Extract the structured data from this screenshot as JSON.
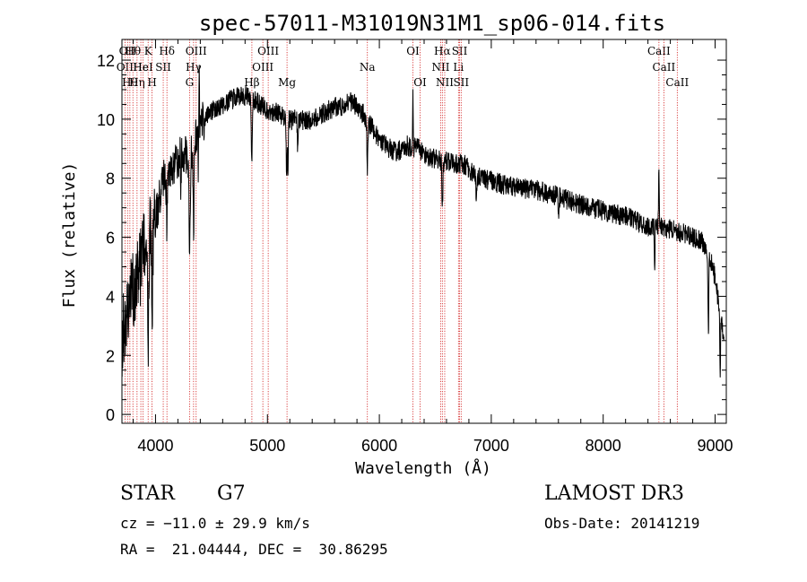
{
  "chart_data": {
    "type": "line",
    "title": "spec-57011-M31019N31M1_sp06-014.fits",
    "xlabel": "Wavelength (Å)",
    "ylabel": "Flux (relative)",
    "xlim": [
      3700,
      9100
    ],
    "ylim": [
      -0.3,
      12.7
    ],
    "x_ticks": [
      4000,
      5000,
      6000,
      7000,
      8000,
      9000
    ],
    "y_ticks": [
      0,
      2,
      4,
      6,
      8,
      10,
      12
    ],
    "grid": false,
    "continuum": [
      [
        3700,
        2.6
      ],
      [
        3740,
        3.4
      ],
      [
        3780,
        4.0
      ],
      [
        3820,
        4.4
      ],
      [
        3860,
        5.0
      ],
      [
        3900,
        5.5
      ],
      [
        3940,
        5.9
      ],
      [
        3980,
        6.3
      ],
      [
        4020,
        7.0
      ],
      [
        4060,
        7.8
      ],
      [
        4100,
        8.2
      ],
      [
        4150,
        8.4
      ],
      [
        4200,
        8.7
      ],
      [
        4250,
        8.9
      ],
      [
        4300,
        8.7
      ],
      [
        4350,
        9.2
      ],
      [
        4400,
        9.8
      ],
      [
        4450,
        10.0
      ],
      [
        4500,
        10.3
      ],
      [
        4600,
        10.5
      ],
      [
        4700,
        10.7
      ],
      [
        4800,
        10.8
      ],
      [
        4900,
        10.6
      ],
      [
        5000,
        10.3
      ],
      [
        5100,
        10.2
      ],
      [
        5200,
        10.0
      ],
      [
        5300,
        9.95
      ],
      [
        5400,
        10.0
      ],
      [
        5500,
        10.2
      ],
      [
        5600,
        10.4
      ],
      [
        5700,
        10.5
      ],
      [
        5760,
        10.6
      ],
      [
        5850,
        10.2
      ],
      [
        5950,
        9.6
      ],
      [
        6050,
        9.1
      ],
      [
        6150,
        8.9
      ],
      [
        6250,
        9.1
      ],
      [
        6350,
        9.0
      ],
      [
        6450,
        8.7
      ],
      [
        6550,
        8.6
      ],
      [
        6650,
        8.5
      ],
      [
        6750,
        8.5
      ],
      [
        6850,
        8.1
      ],
      [
        7000,
        7.9
      ],
      [
        7200,
        7.7
      ],
      [
        7400,
        7.6
      ],
      [
        7600,
        7.4
      ],
      [
        7800,
        7.1
      ],
      [
        8000,
        6.9
      ],
      [
        8200,
        6.7
      ],
      [
        8400,
        6.4
      ],
      [
        8600,
        6.3
      ],
      [
        8800,
        6.0
      ],
      [
        8900,
        5.8
      ],
      [
        8960,
        5.3
      ],
      [
        9000,
        4.6
      ],
      [
        9040,
        3.6
      ],
      [
        9080,
        2.4
      ]
    ],
    "absorption_features": [
      {
        "wavelength": 3934,
        "depth": 4.2,
        "width": 6
      },
      {
        "wavelength": 3969,
        "depth": 3.5,
        "width": 6
      },
      {
        "wavelength": 4101,
        "depth": 1.8,
        "width": 6
      },
      {
        "wavelength": 4227,
        "depth": 1.0,
        "width": 5
      },
      {
        "wavelength": 4305,
        "depth": 3.0,
        "width": 7
      },
      {
        "wavelength": 4340,
        "depth": 2.6,
        "width": 6
      },
      {
        "wavelength": 4383,
        "depth": 1.2,
        "width": 5
      },
      {
        "wavelength": 4861,
        "depth": 2.3,
        "width": 6
      },
      {
        "wavelength": 5172,
        "depth": 1.8,
        "width": 6
      },
      {
        "wavelength": 5183,
        "depth": 1.6,
        "width": 5
      },
      {
        "wavelength": 5270,
        "depth": 0.9,
        "width": 5
      },
      {
        "wavelength": 5893,
        "depth": 1.7,
        "width": 6
      },
      {
        "wavelength": 6563,
        "depth": 1.6,
        "width": 6
      },
      {
        "wavelength": 6867,
        "depth": 0.9,
        "width": 5
      },
      {
        "wavelength": 7600,
        "depth": 0.8,
        "width": 6
      },
      {
        "wavelength": 8460,
        "depth": 1.4,
        "width": 4
      },
      {
        "wavelength": 8940,
        "depth": 2.8,
        "width": 5
      },
      {
        "wavelength": 9045,
        "depth": 2.5,
        "width": 4
      }
    ],
    "emission_features": [
      {
        "wavelength": 4390,
        "height": 2.2,
        "width": 3
      },
      {
        "wavelength": 6300,
        "height": 2.3,
        "width": 3
      },
      {
        "wavelength": 8498,
        "height": 2.1,
        "width": 4
      }
    ],
    "noise_amplitude": 0.35,
    "line_markers": [
      {
        "wavelength": 3727,
        "row": 2,
        "label": "OII"
      },
      {
        "wavelength": 3750,
        "row": 1,
        "label": "OII"
      },
      {
        "wavelength": 3771,
        "row": 3,
        "label": "Hθ"
      },
      {
        "wavelength": 3798,
        "row": 1,
        "label": "Hθ"
      },
      {
        "wavelength": 3835,
        "row": 3,
        "label": "Hη"
      },
      {
        "wavelength": 3869,
        "row": 2,
        "label": "He"
      },
      {
        "wavelength": 3889,
        "row": 2,
        "label": "HeI"
      },
      {
        "wavelength": 3934,
        "row": 1,
        "label": "K"
      },
      {
        "wavelength": 3969,
        "row": 3,
        "label": "H"
      },
      {
        "wavelength": 4069,
        "row": 2,
        "label": "SII"
      },
      {
        "wavelength": 4102,
        "row": 1,
        "label": "Hδ"
      },
      {
        "wavelength": 4304,
        "row": 3,
        "label": "G"
      },
      {
        "wavelength": 4340,
        "row": 2,
        "label": "Hγ"
      },
      {
        "wavelength": 4363,
        "row": 1,
        "label": "OIII"
      },
      {
        "wavelength": 4861,
        "row": 3,
        "label": "Hβ"
      },
      {
        "wavelength": 4959,
        "row": 2,
        "label": "OIII"
      },
      {
        "wavelength": 5007,
        "row": 1,
        "label": "OIII"
      },
      {
        "wavelength": 5175,
        "row": 3,
        "label": "Mg"
      },
      {
        "wavelength": 5893,
        "row": 2,
        "label": "Na"
      },
      {
        "wavelength": 6300,
        "row": 1,
        "label": "OI"
      },
      {
        "wavelength": 6364,
        "row": 3,
        "label": "OI"
      },
      {
        "wavelength": 6548,
        "row": 2,
        "label": "NII"
      },
      {
        "wavelength": 6563,
        "row": 1,
        "label": "Hα"
      },
      {
        "wavelength": 6584,
        "row": 3,
        "label": "NII"
      },
      {
        "wavelength": 6707,
        "row": 2,
        "label": "Li"
      },
      {
        "wavelength": 6717,
        "row": 1,
        "label": "SII"
      },
      {
        "wavelength": 6731,
        "row": 3,
        "label": "SII"
      },
      {
        "wavelength": 8498,
        "row": 1,
        "label": "CaII"
      },
      {
        "wavelength": 8542,
        "row": 2,
        "label": "CaII"
      },
      {
        "wavelength": 8662,
        "row": 3,
        "label": "CaII"
      }
    ]
  },
  "footer": {
    "class_label": "STAR",
    "subclass": "G7",
    "survey": "LAMOST DR3",
    "redshift": "cz = −11.0 ± 29.9 km/s",
    "obs_date": "Obs-Date: 20141219",
    "coordinates": "RA =  21.04444, DEC =  30.86295"
  }
}
